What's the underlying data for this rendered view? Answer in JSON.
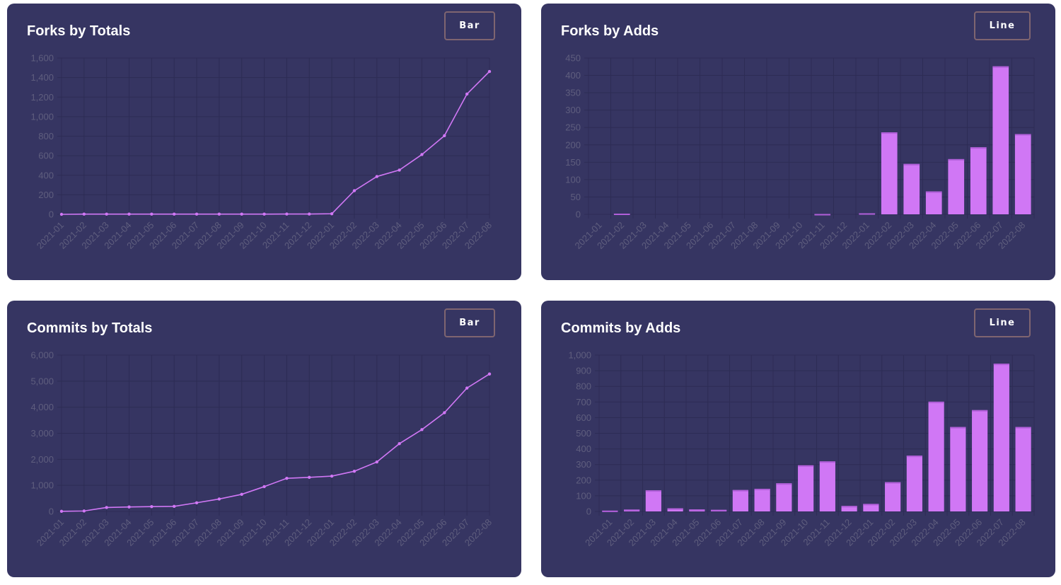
{
  "colors": {
    "card_bg": "#363562",
    "grid": "#2d2c55",
    "tick": "#5f5e7e",
    "series": "#d077f5",
    "series_border": "#b15fd9",
    "button_border": "#7f6570"
  },
  "cards": [
    {
      "title": "Forks by Totals",
      "toggle_label": "Bar"
    },
    {
      "title": "Forks by Adds",
      "toggle_label": "Line"
    },
    {
      "title": "Commits by Totals",
      "toggle_label": "Bar"
    },
    {
      "title": "Commits by Adds",
      "toggle_label": "Line"
    }
  ],
  "chart_data": [
    {
      "type": "line",
      "title": "Forks by Totals",
      "categories": [
        "2021-01",
        "2021-02",
        "2021-03",
        "2021-04",
        "2021-05",
        "2021-06",
        "2021-07",
        "2021-08",
        "2021-09",
        "2021-10",
        "2021-11",
        "2021-12",
        "2022-01",
        "2022-02",
        "2022-03",
        "2022-04",
        "2022-05",
        "2022-06",
        "2022-07",
        "2022-08"
      ],
      "values": [
        0,
        2,
        2,
        2,
        2,
        2,
        2,
        2,
        2,
        2,
        3,
        3,
        6,
        242,
        387,
        453,
        612,
        805,
        1231,
        1462
      ],
      "ylim": [
        0,
        1600
      ],
      "yticks": [
        0,
        200,
        400,
        600,
        800,
        1000,
        1200,
        1400,
        1600
      ],
      "grid": true
    },
    {
      "type": "bar",
      "title": "Forks by Adds",
      "categories": [
        "2021-01",
        "2021-02",
        "2021-03",
        "2021-04",
        "2021-05",
        "2021-06",
        "2021-07",
        "2021-08",
        "2021-09",
        "2021-10",
        "2021-11",
        "2021-12",
        "2022-01",
        "2022-02",
        "2022-03",
        "2022-04",
        "2022-05",
        "2022-06",
        "2022-07",
        "2022-08"
      ],
      "values": [
        0,
        2,
        0,
        0,
        0,
        0,
        0,
        0,
        0,
        0,
        1,
        0,
        3,
        236,
        145,
        66,
        159,
        193,
        426,
        231
      ],
      "ylim": [
        0,
        450
      ],
      "yticks": [
        0,
        50,
        100,
        150,
        200,
        250,
        300,
        350,
        400,
        450
      ],
      "grid": true
    },
    {
      "type": "line",
      "title": "Commits by Totals",
      "categories": [
        "2021-01",
        "2021-02",
        "2021-03",
        "2021-04",
        "2021-05",
        "2021-06",
        "2021-07",
        "2021-08",
        "2021-09",
        "2021-10",
        "2021-11",
        "2021-12",
        "2022-01",
        "2022-02",
        "2022-03",
        "2022-04",
        "2022-05",
        "2022-06",
        "2022-07",
        "2022-08"
      ],
      "values": [
        5,
        17,
        152,
        172,
        185,
        195,
        332,
        477,
        657,
        952,
        1272,
        1307,
        1355,
        1542,
        1899,
        2601,
        3141,
        3789,
        4734,
        5274
      ],
      "ylim": [
        0,
        6000
      ],
      "yticks": [
        0,
        1000,
        2000,
        3000,
        4000,
        5000,
        6000
      ],
      "grid": true
    },
    {
      "type": "bar",
      "title": "Commits by Adds",
      "categories": [
        "2021-01",
        "2021-02",
        "2021-03",
        "2021-04",
        "2021-05",
        "2021-06",
        "2021-07",
        "2021-08",
        "2021-09",
        "2021-10",
        "2021-11",
        "2021-12",
        "2022-01",
        "2022-02",
        "2022-03",
        "2022-04",
        "2022-05",
        "2022-06",
        "2022-07",
        "2022-08"
      ],
      "values": [
        5,
        12,
        135,
        20,
        13,
        10,
        137,
        145,
        180,
        295,
        320,
        35,
        48,
        187,
        357,
        702,
        540,
        648,
        945,
        540
      ],
      "ylim": [
        0,
        1000
      ],
      "yticks": [
        0,
        100,
        200,
        300,
        400,
        500,
        600,
        700,
        800,
        900,
        1000
      ],
      "grid": true
    }
  ]
}
